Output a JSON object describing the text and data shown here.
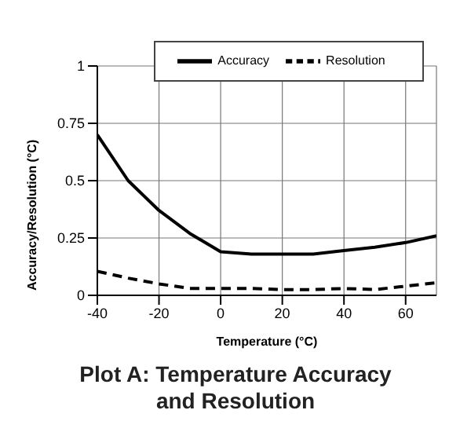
{
  "chart_data": {
    "type": "line",
    "title": "Plot A: Temperature Accuracy and Resolution",
    "xlabel": "Temperature (°C)",
    "ylabel": "Accuracy/Resolution  (°C)",
    "x": [
      -40,
      -30,
      -20,
      -10,
      0,
      10,
      20,
      30,
      40,
      50,
      60,
      70
    ],
    "series": [
      {
        "name": "Accuracy",
        "color": "#000000",
        "line_style": "solid",
        "values": [
          0.7,
          0.5,
          0.37,
          0.27,
          0.19,
          0.18,
          0.18,
          0.18,
          0.195,
          0.21,
          0.23,
          0.26
        ]
      },
      {
        "name": "Resolution",
        "color": "#000000",
        "line_style": "dashed",
        "values": [
          0.105,
          0.075,
          0.05,
          0.03,
          0.03,
          0.03,
          0.025,
          0.025,
          0.03,
          0.025,
          0.04,
          0.055
        ]
      }
    ],
    "xlim": [
      -40,
      70
    ],
    "xticks": [
      -40,
      -20,
      0,
      20,
      40,
      60
    ],
    "ylim": [
      0,
      1
    ],
    "yticks": [
      0,
      0.25,
      0.5,
      0.75,
      1
    ],
    "grid": true,
    "legend": "top",
    "marker": "none"
  }
}
